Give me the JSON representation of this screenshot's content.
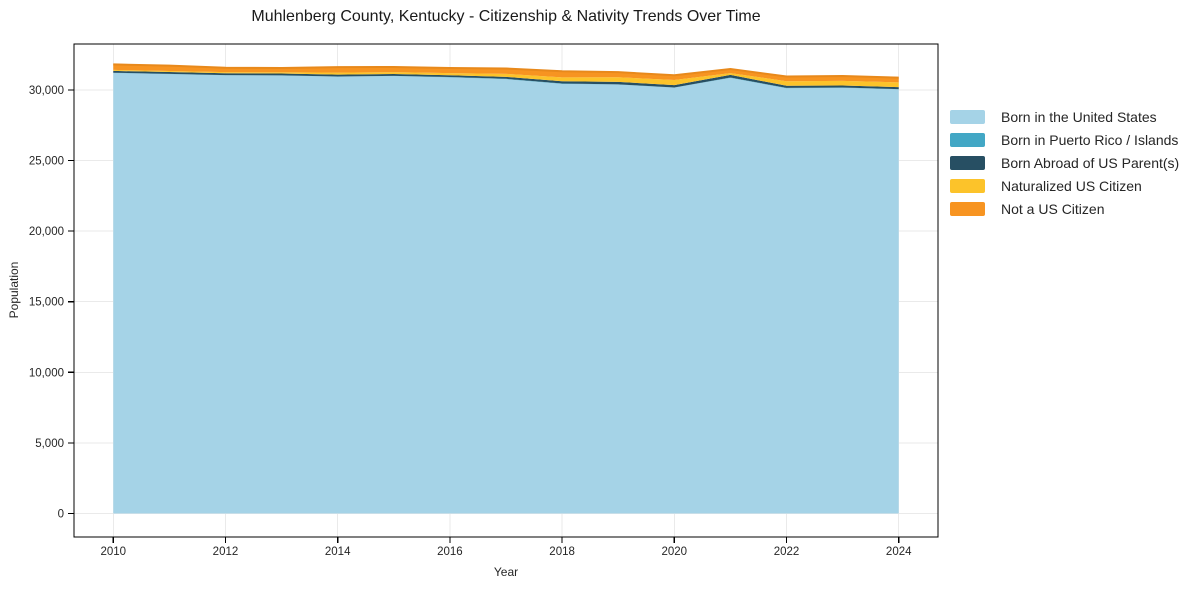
{
  "chart_data": {
    "type": "area",
    "stacked": true,
    "title": "Muhlenberg County, Kentucky - Citizenship & Nativity Trends Over Time",
    "xlabel": "Year",
    "ylabel": "Population",
    "x": [
      2010,
      2011,
      2012,
      2013,
      2014,
      2015,
      2016,
      2017,
      2018,
      2019,
      2020,
      2021,
      2022,
      2023,
      2024
    ],
    "series": [
      {
        "name": "Born in the United States",
        "color": "#a5d3e7",
        "values": [
          31200,
          31120,
          31040,
          31020,
          30940,
          30980,
          30890,
          30760,
          30430,
          30380,
          30160,
          30850,
          30120,
          30150,
          30040
        ]
      },
      {
        "name": "Born in Puerto Rico / Islands",
        "color": "#42a7c5",
        "values": [
          15,
          15,
          10,
          10,
          10,
          15,
          20,
          25,
          20,
          15,
          10,
          30,
          25,
          20,
          15
        ]
      },
      {
        "name": "Born Abroad of US Parent(s)",
        "color": "#274f63",
        "values": [
          130,
          130,
          125,
          130,
          135,
          130,
          130,
          140,
          160,
          170,
          170,
          180,
          150,
          140,
          140
        ]
      },
      {
        "name": "Naturalized US Citizen",
        "color": "#fcc32a",
        "values": [
          70,
          75,
          80,
          90,
          140,
          130,
          150,
          210,
          280,
          330,
          360,
          130,
          320,
          330,
          340
        ]
      },
      {
        "name": "Not a US Citizen",
        "color": "#f79421",
        "values": [
          390,
          380,
          310,
          300,
          390,
          370,
          360,
          380,
          430,
          360,
          340,
          290,
          330,
          340,
          330
        ]
      }
    ],
    "xtick_values": [
      2010,
      2012,
      2014,
      2016,
      2018,
      2020,
      2022,
      2024
    ],
    "xtick_labels": [
      "2010",
      "2012",
      "2014",
      "2016",
      "2018",
      "2020",
      "2022",
      "2024"
    ],
    "ytick_values": [
      0,
      5000,
      10000,
      15000,
      20000,
      25000,
      30000
    ],
    "ytick_labels": [
      "0",
      "5,000",
      "10,000",
      "15,000",
      "20,000",
      "25,000",
      "30,000"
    ],
    "xlim": [
      2009.3,
      2024.7
    ],
    "ylim": [
      -1660,
      33250
    ],
    "grid": true,
    "legend_position": "right"
  },
  "colors": {
    "background": "#ffffff",
    "grid": "#eaeaea",
    "border": "#000000",
    "tick_text": "#262626",
    "total_edge": "#e8891b"
  }
}
